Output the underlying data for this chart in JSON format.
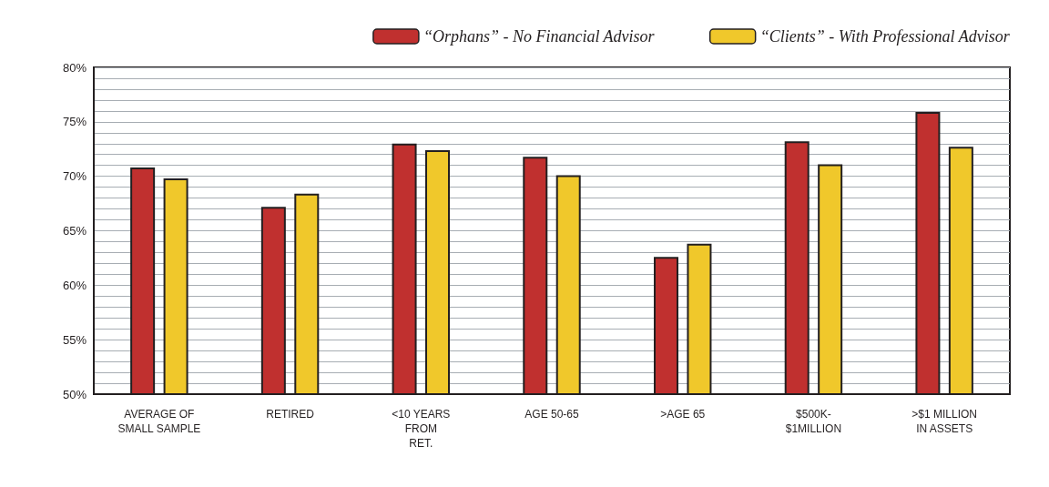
{
  "chart_data": {
    "type": "bar",
    "categories": [
      "AVERAGE OF\nSMALL SAMPLE",
      "RETIRED",
      "<10 YEARS\nFROM\nRET.",
      "AGE 50-65",
      ">AGE 65",
      "$500K-\n$1MILLION",
      ">$1 MILLION\nIN ASSETS"
    ],
    "series": [
      {
        "name": "“Orphans” - No Financial Advisor",
        "color": "#c0302f",
        "values": [
          70.8,
          67.2,
          73.0,
          71.8,
          62.6,
          73.2,
          75.9
        ]
      },
      {
        "name": "“Clients” - With Professional Advisor",
        "color": "#f0c82b",
        "values": [
          69.8,
          68.4,
          72.4,
          70.1,
          63.8,
          71.1,
          72.7
        ]
      }
    ],
    "ylim": [
      50,
      80
    ],
    "yticks": [
      {
        "value": 50,
        "label": "50%"
      },
      {
        "value": 51,
        "label": null
      },
      {
        "value": 52,
        "label": null
      },
      {
        "value": 53,
        "label": null
      },
      {
        "value": 54,
        "label": null
      },
      {
        "value": 55,
        "label": "55%"
      },
      {
        "value": 56,
        "label": null
      },
      {
        "value": 57,
        "label": null
      },
      {
        "value": 58,
        "label": null
      },
      {
        "value": 59,
        "label": null
      },
      {
        "value": 60,
        "label": "60%"
      },
      {
        "value": 61,
        "label": null
      },
      {
        "value": 62,
        "label": null
      },
      {
        "value": 63,
        "label": null
      },
      {
        "value": 64,
        "label": null
      },
      {
        "value": 65,
        "label": "65%"
      },
      {
        "value": 66,
        "label": null
      },
      {
        "value": 67,
        "label": null
      },
      {
        "value": 68,
        "label": null
      },
      {
        "value": 69,
        "label": null
      },
      {
        "value": 70,
        "label": "70%"
      },
      {
        "value": 71,
        "label": null
      },
      {
        "value": 72,
        "label": null
      },
      {
        "value": 73,
        "label": null
      },
      {
        "value": 74,
        "label": null
      },
      {
        "value": 75,
        "label": "75%"
      },
      {
        "value": 76,
        "label": null
      },
      {
        "value": 77,
        "label": null
      },
      {
        "value": 78,
        "label": null
      },
      {
        "value": 79,
        "label": null
      },
      {
        "value": 80,
        "label": "80%"
      }
    ],
    "grid": "y",
    "legend": "top right"
  }
}
